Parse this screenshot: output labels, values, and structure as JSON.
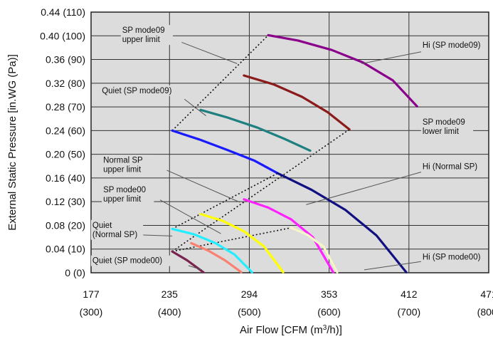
{
  "chart_data": {
    "type": "line",
    "xlabel": "Air Flow [CFM (m³/h)]",
    "ylabel": "External Static Pressure [in.WG (Pa)]",
    "xlim": [
      177,
      471
    ],
    "ylim": [
      0,
      0.44
    ],
    "grid": true,
    "x_ticks": [
      {
        "value": 177,
        "label": "177",
        "sub": "(300)"
      },
      {
        "value": 235,
        "label": "235",
        "sub": "(400)"
      },
      {
        "value": 294,
        "label": "294",
        "sub": "(500)"
      },
      {
        "value": 353,
        "label": "353",
        "sub": "(600)"
      },
      {
        "value": 412,
        "label": "412",
        "sub": "(700)"
      },
      {
        "value": 471,
        "label": "471",
        "sub": "(800)"
      }
    ],
    "y_ticks": [
      {
        "value": 0,
        "label": "0 (0)"
      },
      {
        "value": 0.04,
        "label": "0.04 (10)"
      },
      {
        "value": 0.08,
        "label": "0.08 (20)"
      },
      {
        "value": 0.12,
        "label": "0.12 (30)"
      },
      {
        "value": 0.16,
        "label": "0.16 (40)"
      },
      {
        "value": 0.2,
        "label": "0.20 (50)"
      },
      {
        "value": 0.24,
        "label": "0.24 (60)"
      },
      {
        "value": 0.28,
        "label": "0.28 (70)"
      },
      {
        "value": 0.32,
        "label": "0.32 (80)"
      },
      {
        "value": 0.36,
        "label": "0.36 (90)"
      },
      {
        "value": 0.4,
        "label": "0.40 (100)"
      },
      {
        "value": 0.44,
        "label": "0.44 (110)"
      }
    ],
    "series": [
      {
        "color": "#8B008B",
        "x": [
          308,
          330,
          355,
          378,
          400,
          418
        ],
        "y": [
          0.401,
          0.392,
          0.376,
          0.355,
          0.325,
          0.281
        ]
      },
      {
        "color": "#8B1A1A",
        "x": [
          290,
          312,
          333,
          352,
          368
        ],
        "y": [
          0.333,
          0.318,
          0.297,
          0.271,
          0.242
        ]
      },
      {
        "color": "#1E8080",
        "x": [
          258,
          278,
          300,
          320,
          339
        ],
        "y": [
          0.275,
          0.262,
          0.245,
          0.226,
          0.206
        ]
      },
      {
        "color": "#1A1AFF",
        "x": [
          237,
          257,
          278,
          298,
          315
        ],
        "y": [
          0.24,
          0.225,
          0.207,
          0.189,
          0.168
        ]
      },
      {
        "color": "#101080",
        "x": [
          315,
          340,
          365,
          388,
          410
        ],
        "y": [
          0.168,
          0.14,
          0.106,
          0.063,
          0.001
        ]
      },
      {
        "color": "#FF22FF",
        "x": [
          290,
          308,
          325,
          341,
          356
        ],
        "y": [
          0.124,
          0.11,
          0.09,
          0.06,
          0.001
        ]
      },
      {
        "color": "#FFFF00",
        "x": [
          258,
          274,
          290,
          305,
          319
        ],
        "y": [
          0.099,
          0.088,
          0.07,
          0.044,
          0.001
        ]
      },
      {
        "color": "#F5F5C8",
        "x": [
          325,
          337,
          349,
          359
        ],
        "y": [
          0.076,
          0.064,
          0.044,
          0.001
        ]
      },
      {
        "color": "#22EEFF",
        "x": [
          237,
          253,
          269,
          283,
          296
        ],
        "y": [
          0.074,
          0.065,
          0.05,
          0.031,
          0.001
        ]
      },
      {
        "color": "#FA8072",
        "x": [
          251,
          264,
          276,
          288
        ],
        "y": [
          0.05,
          0.037,
          0.021,
          0.001
        ]
      },
      {
        "color": "#7A2350",
        "x": [
          237,
          248,
          260
        ],
        "y": [
          0.036,
          0.021,
          0.001
        ]
      }
    ],
    "limit_lines": [
      {
        "x": [
          237,
          308
        ],
        "y": [
          0.24,
          0.401
        ]
      },
      {
        "x": [
          237,
          368
        ],
        "y": [
          0.036,
          0.242
        ]
      },
      {
        "x": [
          237,
          315
        ],
        "y": [
          0.074,
          0.168
        ]
      },
      {
        "x": [
          237,
          325
        ],
        "y": [
          0.036,
          0.076
        ]
      }
    ],
    "annotations": [
      {
        "lines": [
          "SP mode09",
          "upper limit"
        ],
        "x": 200,
        "y": 0.405,
        "pointer": [
          244,
          0.389,
          285,
          0.353
        ]
      },
      {
        "lines": [
          "Hi (SP mode09)"
        ],
        "x": 422,
        "y": 0.38,
        "pointer": [
          421,
          0.373,
          377,
          0.353
        ]
      },
      {
        "lines": [
          "Quiet (SP mode09)"
        ],
        "x": 185,
        "y": 0.303,
        "pointer": [
          246,
          0.293,
          262,
          0.265
        ]
      },
      {
        "lines": [
          "SP mode09",
          "lower limit"
        ],
        "x": 422,
        "y": 0.25,
        "pointer": [
          420,
          0.24,
          368,
          0.24
        ]
      },
      {
        "lines": [
          "Normal SP",
          "upper limit"
        ],
        "x": 186,
        "y": 0.186,
        "pointer": [
          233,
          0.173,
          287,
          0.119
        ]
      },
      {
        "lines": [
          "Hi (Normal SP)"
        ],
        "x": 422,
        "y": 0.175,
        "pointer": [
          421,
          0.17,
          336,
          0.115
        ]
      },
      {
        "lines": [
          "SP mode00",
          "upper limit"
        ],
        "x": 186,
        "y": 0.136,
        "pointer": [
          228,
          0.123,
          273,
          0.066
        ]
      },
      {
        "lines": [
          "Quiet",
          "(Normal SP)"
        ],
        "x": 178,
        "y": 0.076,
        "pointer": [
          212,
          0.064,
          237,
          0.062
        ]
      },
      {
        "lines": [
          "Hi (SP mode00)"
        ],
        "x": 422,
        "y": 0.022,
        "pointer": [
          421,
          0.019,
          379,
          0.005
        ]
      },
      {
        "lines": [
          "Quiet (SP mode00)"
        ],
        "x": 178,
        "y": 0.016,
        "pointer": [
          249,
          0.012,
          259,
          0.005
        ]
      }
    ]
  }
}
